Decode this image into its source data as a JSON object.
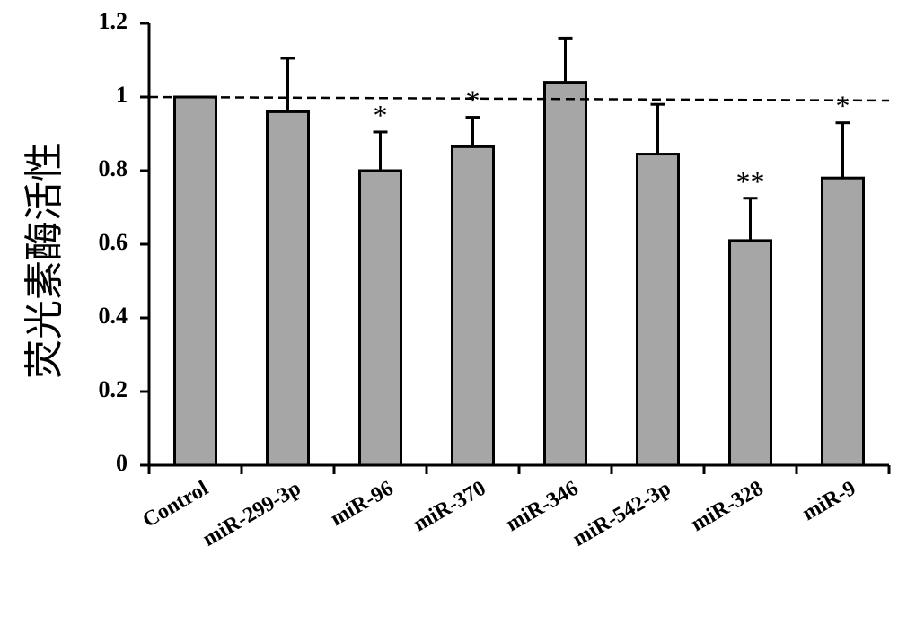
{
  "chart_data": {
    "type": "bar",
    "ylabel": "荧光素酶活性",
    "xlabel": "",
    "ylim": [
      0,
      1.2
    ],
    "yticks": [
      "0",
      "0.2",
      "0.4",
      "0.6",
      "0.8",
      "1",
      "1.2"
    ],
    "categories": [
      "Control",
      "miR-299-3p",
      "miR-96",
      "miR-370",
      "miR-346",
      "miR-542-3p",
      "miR-328",
      "miR-9"
    ],
    "values": [
      1.0,
      0.96,
      0.8,
      0.865,
      1.04,
      0.845,
      0.61,
      0.78
    ],
    "error": [
      0,
      0.145,
      0.105,
      0.08,
      0.12,
      0.135,
      0.115,
      0.15
    ],
    "significance": [
      "",
      "",
      "*",
      "*",
      "",
      "",
      "**",
      "*"
    ],
    "reference_line": 1.0,
    "bar_color": "#a6a6a6",
    "grid": false
  }
}
